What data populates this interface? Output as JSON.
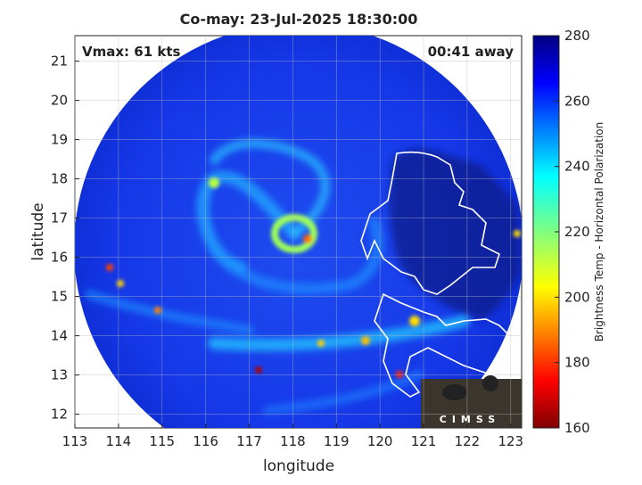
{
  "title": "Co-may: 23-Jul-2025 18:30:00",
  "annotations": {
    "vmax": "Vmax: 61 kts",
    "away": "00:41 away"
  },
  "x_axis": {
    "label": "longitude",
    "lim": [
      113,
      123.25
    ],
    "ticks": [
      113,
      114,
      115,
      116,
      117,
      118,
      119,
      120,
      121,
      122,
      123
    ]
  },
  "y_axis": {
    "label": "latitude",
    "lim": [
      11.65,
      21.65
    ],
    "ticks": [
      12,
      13,
      14,
      15,
      16,
      17,
      18,
      19,
      20,
      21
    ]
  },
  "colorbar": {
    "label": "Brightness Temp - Horizontal Polarization",
    "lim": [
      160,
      280
    ],
    "ticks": [
      160,
      180,
      200,
      220,
      240,
      260,
      280
    ]
  },
  "logo": "CIMSS"
}
